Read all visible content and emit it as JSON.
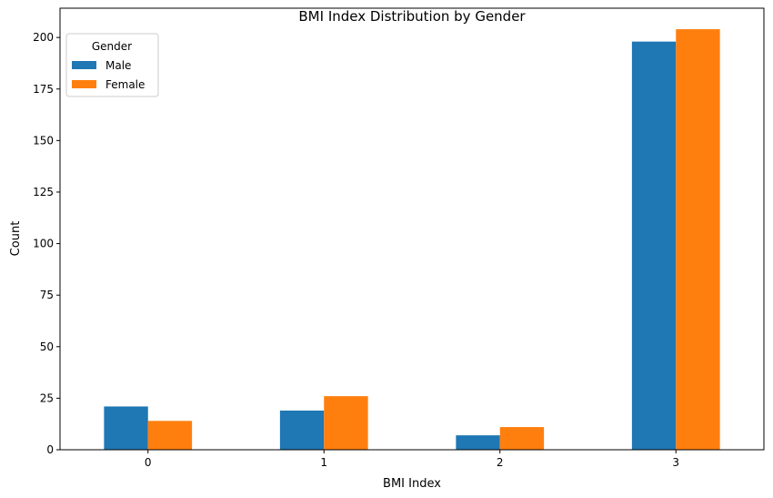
{
  "chart_data": {
    "type": "bar",
    "title": "BMI Index Distribution by Gender",
    "xlabel": "BMI Index",
    "ylabel": "Count",
    "categories": [
      "0",
      "1",
      "2",
      "3"
    ],
    "series": [
      {
        "name": "Male",
        "values": [
          21,
          19,
          7,
          198
        ],
        "color": "#1f77b4"
      },
      {
        "name": "Female",
        "values": [
          14,
          26,
          11,
          204
        ],
        "color": "#ff7f0e"
      }
    ],
    "ylim": [
      0,
      214.2
    ],
    "yticks": [
      0,
      25,
      50,
      75,
      100,
      125,
      150,
      175,
      200
    ],
    "grid": false,
    "legend": {
      "title": "Gender",
      "placement": "top-left"
    }
  }
}
